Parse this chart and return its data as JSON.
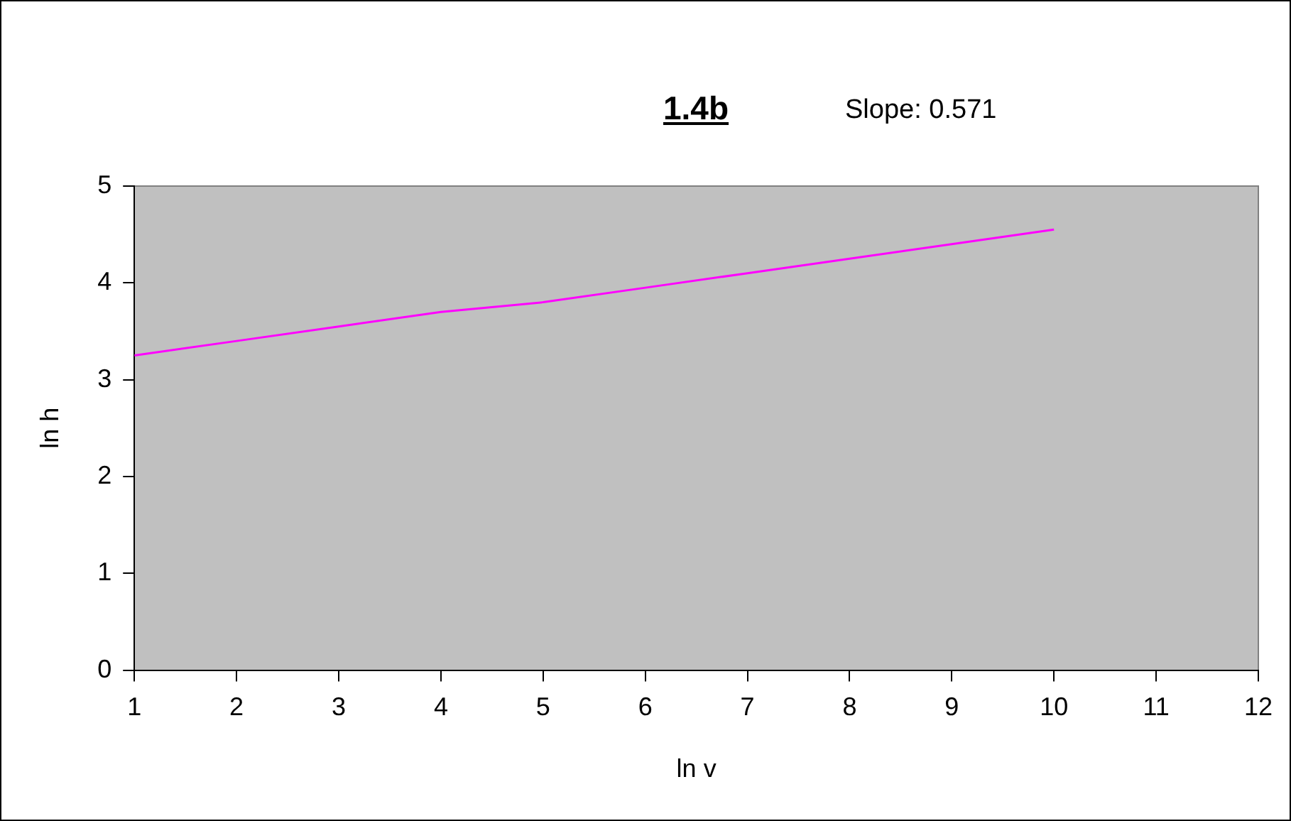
{
  "chart_data": {
    "type": "line",
    "title": "1.4b",
    "annotations": [
      "Slope: 0.571"
    ],
    "xlabel": "ln v",
    "ylabel": "ln h",
    "x": [
      1,
      2,
      3,
      4,
      5,
      6,
      7,
      8,
      9,
      10
    ],
    "series": [
      {
        "color": "#ff00ff",
        "values": [
          3.25,
          3.4,
          3.55,
          3.7,
          3.8,
          3.95,
          4.1,
          4.25,
          4.4,
          4.55
        ]
      }
    ],
    "xlim": [
      1,
      12
    ],
    "xticks": [
      1,
      2,
      3,
      4,
      5,
      6,
      7,
      8,
      9,
      10,
      11,
      12
    ],
    "ylim": [
      0,
      5
    ],
    "yticks": [
      0,
      1,
      2,
      3,
      4,
      5
    ],
    "grid": false,
    "legend": false,
    "marker": "none",
    "line_style": "solid"
  }
}
